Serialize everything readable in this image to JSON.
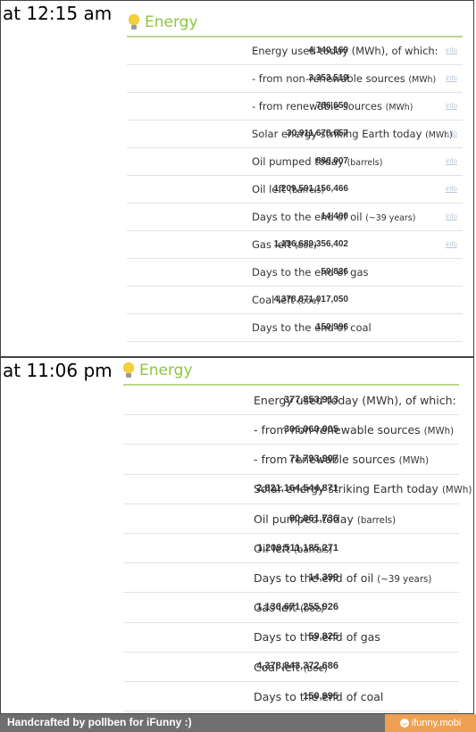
{
  "panels": [
    {
      "caption": "at 12:15 am",
      "title": "Energy",
      "rows": [
        {
          "value": "4,140,169",
          "label": "Energy used today (MWh), of which:",
          "unit": "",
          "info": "info"
        },
        {
          "value": "3,353,519",
          "label": "- from non-renewable sources ",
          "unit": "(MWh)",
          "info": "info"
        },
        {
          "value": "786,650",
          "label": "- from renewable sources ",
          "unit": "(MWh)",
          "info": "info"
        },
        {
          "value": "30,911,678,657",
          "label": "Solar energy striking Earth today ",
          "unit": "(MWh)",
          "info": "info"
        },
        {
          "value": "886,007",
          "label": "Oil pumped today ",
          "unit": "(barrels)",
          "info": "info"
        },
        {
          "value": "1,209,591,156,466",
          "label": "Oil left ",
          "unit": "(barrels)",
          "info": "info"
        },
        {
          "value": "14,400",
          "label": "Days to the end of oil ",
          "unit": "(~39 years)",
          "info": "info"
        },
        {
          "value": "1,136,689,356,402",
          "label": "Gas left ",
          "unit": "(boe)",
          "info": "info"
        },
        {
          "value": "59,826",
          "label": "Days to the end of gas",
          "unit": "",
          "info": ""
        },
        {
          "value": "4,378,871,017,050",
          "label": "Coal left ",
          "unit": "(boe)",
          "info": ""
        },
        {
          "value": "150,996",
          "label": "Days to the end of coal",
          "unit": "",
          "info": ""
        }
      ]
    },
    {
      "caption": "at 11:06 pm",
      "title": "Energy",
      "rows": [
        {
          "value": "377,853,913",
          "label": "Energy used today (MWh), of which:",
          "unit": "",
          "info": ""
        },
        {
          "value": "306,060,005",
          "label": "- from non-renewable sources ",
          "unit": "(MWh)",
          "info": ""
        },
        {
          "value": "71,793,907",
          "label": "- from renewable sources ",
          "unit": "(MWh)",
          "info": ""
        },
        {
          "value": "2,821,164,544,871",
          "label": "Solar energy striking Earth today ",
          "unit": "(MWh)",
          "info": ""
        },
        {
          "value": "80,861,736",
          "label": "Oil pumped today ",
          "unit": "(barrels)",
          "info": ""
        },
        {
          "value": "1,209,511,185,271",
          "label": "Oil left ",
          "unit": "(barrels)",
          "info": ""
        },
        {
          "value": "14,399",
          "label": "Days to the end of oil ",
          "unit": "(~39 years)",
          "info": ""
        },
        {
          "value": "1,136,671,255,926",
          "label": "Gas left ",
          "unit": "(boe)",
          "info": ""
        },
        {
          "value": "59,825",
          "label": "Days to the end of gas",
          "unit": "",
          "info": ""
        },
        {
          "value": "4,378,843,372,686",
          "label": "Coal left ",
          "unit": "(boe)",
          "info": ""
        },
        {
          "value": "150,995",
          "label": "Days to the end of coal",
          "unit": "",
          "info": ""
        }
      ]
    }
  ],
  "footer": {
    "credit": "Handcrafted by pollben for iFunny :)",
    "brand": "ifunny.mobi"
  },
  "colors": {
    "title_green": "#8cc63f",
    "rule_green": "#b9d98c",
    "info_link": "#b8c6d6",
    "footer_bg": "#6f6f6f",
    "brand_bg": "#f0a052"
  },
  "icons": {
    "header": "lightbulb-icon",
    "brand": "smiley-icon"
  }
}
